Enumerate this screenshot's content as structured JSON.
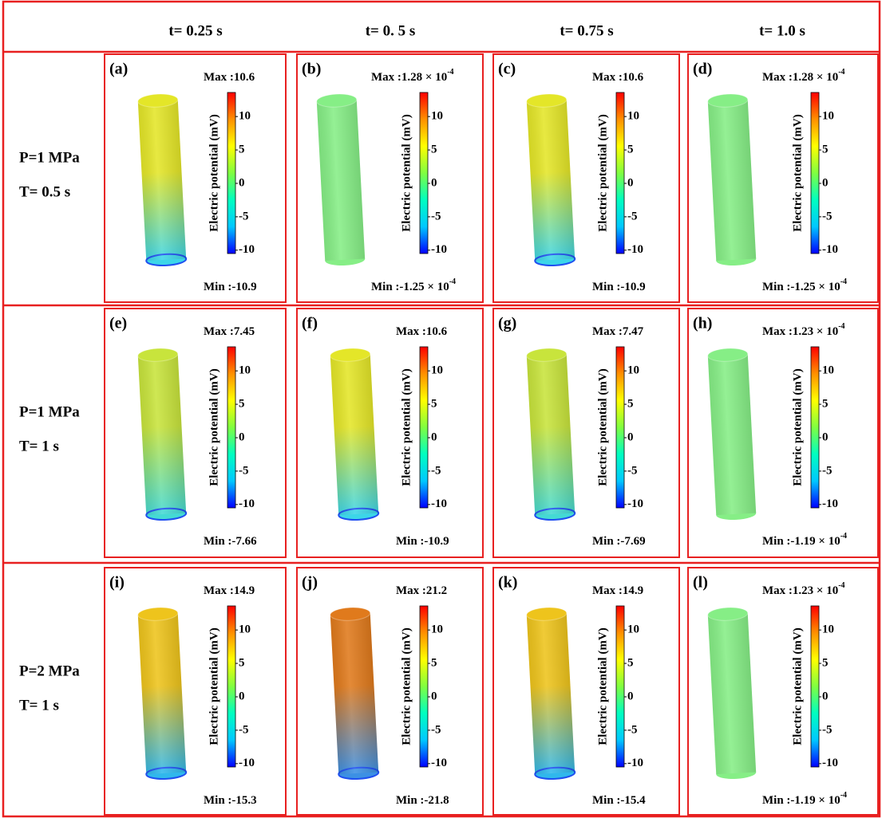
{
  "columns": [
    "t= 0.25 s",
    "t= 0. 5 s",
    "t= 0.75 s",
    "t= 1.0 s"
  ],
  "colorbar": {
    "title": "Electric potential (mV)",
    "ticks": [
      10,
      5,
      0,
      -5,
      -10
    ],
    "range": [
      -10.5,
      13.6
    ],
    "colors": [
      "#0000ff",
      "#00c8ff",
      "#00ffc0",
      "#80ff40",
      "#ffff00",
      "#ff9000",
      "#ff0000"
    ]
  },
  "rows": [
    {
      "p": "P=1 MPa",
      "t": "T= 0.5 s",
      "panels": [
        {
          "label": "(a)",
          "max": {
            "text": "Max :10.6"
          },
          "min": {
            "text": "Min :-10.9"
          },
          "top": "#e4e628",
          "bottom": "#3cd6e8"
        },
        {
          "label": "(b)",
          "max": {
            "text": "Max :1.28 × 10",
            "sup": "-4"
          },
          "min": {
            "text": "Min :-1.25 × 10",
            "sup": "-4"
          },
          "top": "#86ee86",
          "bottom": "#86ee86"
        },
        {
          "label": "(c)",
          "max": {
            "text": "Max :10.6"
          },
          "min": {
            "text": "Min :-10.9"
          },
          "top": "#e4e628",
          "bottom": "#3cd6e8"
        },
        {
          "label": "(d)",
          "max": {
            "text": "Max :1.28 × 10",
            "sup": "-4"
          },
          "min": {
            "text": "Min :-1.25 × 10",
            "sup": "-4"
          },
          "top": "#86ee86",
          "bottom": "#86ee86"
        }
      ]
    },
    {
      "p": "P=1 MPa",
      "t": "T= 1 s",
      "panels": [
        {
          "label": "(e)",
          "max": {
            "text": "Max :7.45"
          },
          "min": {
            "text": "Min :-7.66"
          },
          "top": "#c8e43c",
          "bottom": "#44dad4"
        },
        {
          "label": "(f)",
          "max": {
            "text": "Max :10.6"
          },
          "min": {
            "text": "Min :-10.9"
          },
          "top": "#e4e628",
          "bottom": "#3cd6e8"
        },
        {
          "label": "(g)",
          "max": {
            "text": "Max :7.47"
          },
          "min": {
            "text": "Min :-7.69"
          },
          "top": "#c8e43c",
          "bottom": "#44dad4"
        },
        {
          "label": "(h)",
          "max": {
            "text": "Max :1.23 × 10",
            "sup": "-4"
          },
          "min": {
            "text": "Min :-1.19 × 10",
            "sup": "-4"
          },
          "top": "#86ee86",
          "bottom": "#86ee86"
        }
      ]
    },
    {
      "p": "P=2 MPa",
      "t": "T= 1 s",
      "panels": [
        {
          "label": "(i)",
          "max": {
            "text": "Max :14.9"
          },
          "min": {
            "text": "Min :-15.3"
          },
          "top": "#eec41c",
          "bottom": "#30b8ec"
        },
        {
          "label": "(j)",
          "max": {
            "text": "Max :21.2"
          },
          "min": {
            "text": "Min :-21.8"
          },
          "top": "#e07a1c",
          "bottom": "#3c90e4"
        },
        {
          "label": "(k)",
          "max": {
            "text": "Max :14.9"
          },
          "min": {
            "text": "Min :-15.4"
          },
          "top": "#eec41c",
          "bottom": "#30b8ec"
        },
        {
          "label": "(l)",
          "max": {
            "text": "Max :1.23 × 10",
            "sup": "-4"
          },
          "min": {
            "text": "Min :-1.19 × 10",
            "sup": "-4"
          },
          "top": "#86ee86",
          "bottom": "#86ee86"
        }
      ]
    }
  ]
}
